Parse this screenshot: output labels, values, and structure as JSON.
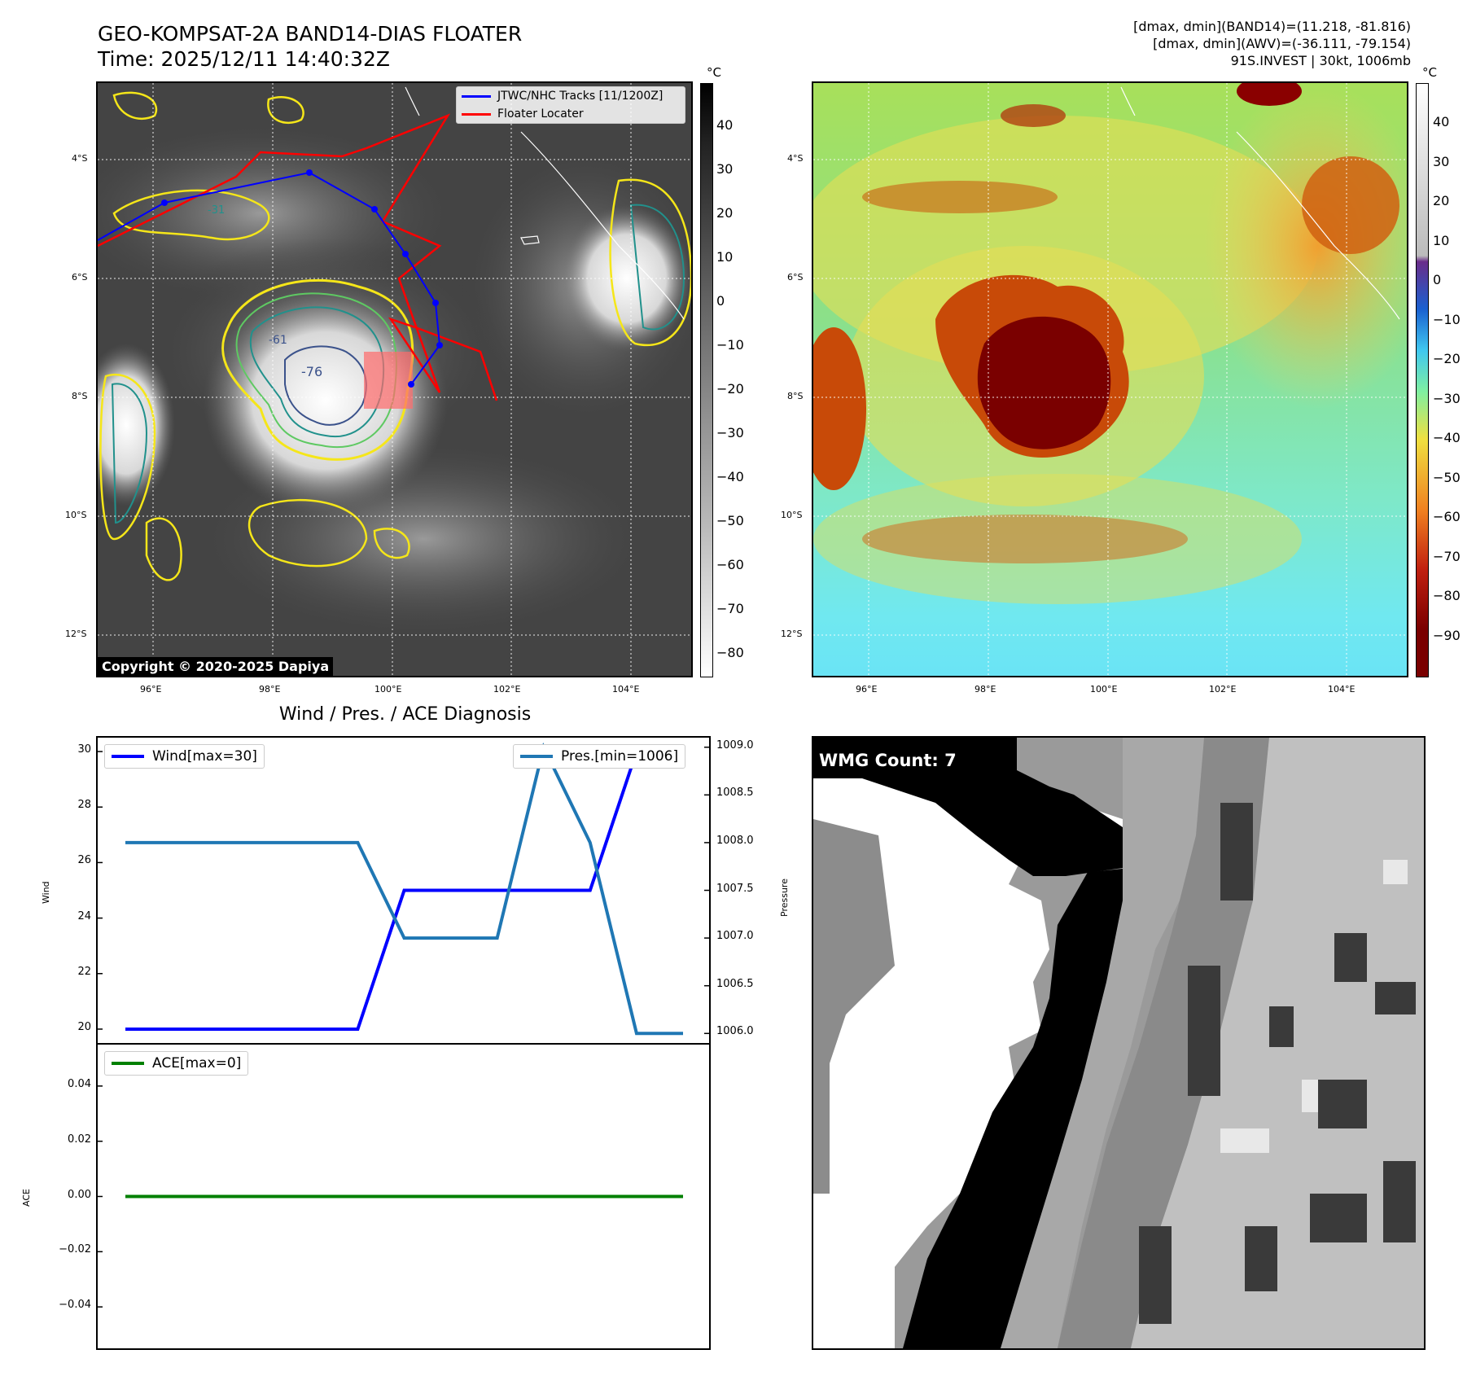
{
  "header": {
    "title_line1": "GEO-KOMPSAT-2A BAND14-DIAS FLOATER",
    "title_line2": "Time: 2025/12/11 14:40:32Z",
    "info_line1": "[dmax, dmin](BAND14)=(11.218, -81.816)",
    "info_line2": "[dmax, dmin](AWV)=(-36.111, -79.154)",
    "info_line3": "91S.INVEST | 30kt, 1006mb"
  },
  "maps": {
    "lat_labels": [
      "4°S",
      "6°S",
      "8°S",
      "10°S",
      "12°S"
    ],
    "lon_labels": [
      "96°E",
      "98°E",
      "100°E",
      "102°E",
      "104°E"
    ],
    "copyright": "Copyright © 2020-2025 Dapiya",
    "legend": {
      "track": "JTWC/NHC Tracks [11/1200Z]",
      "floater": "Floater Locater"
    },
    "contour_labels": [
      "-31",
      "-61",
      "-76"
    ],
    "cbar_unit": "°C",
    "cbar1_ticks": [
      "40",
      "30",
      "20",
      "10",
      "0",
      "−10",
      "−20",
      "−30",
      "−40",
      "−50",
      "−60",
      "−70",
      "−80"
    ],
    "cbar2_ticks": [
      "40",
      "30",
      "20",
      "10",
      "0",
      "−10",
      "−20",
      "−30",
      "−40",
      "−50",
      "−60",
      "−70",
      "−80",
      "−90"
    ],
    "colors": {
      "track": "#0000ff",
      "floater": "#ff0000",
      "contour_yellow": "#f5e619",
      "contour_green": "#5ec962",
      "contour_teal": "#21918c",
      "contour_navy": "#3b528b"
    }
  },
  "diagnosis": {
    "title": "Wind / Pres. / ACE Diagnosis",
    "wind_label": "Wind",
    "pressure_label": "Pressure",
    "ace_label": "ACE",
    "wind_legend": "Wind[max=30]",
    "pres_legend": "Pres.[min=1006]",
    "ace_legend": "ACE[max=0]",
    "wind_ticks": [
      "30",
      "28",
      "26",
      "24",
      "22",
      "20"
    ],
    "pres_ticks": [
      "1009.0",
      "1008.5",
      "1008.0",
      "1007.5",
      "1007.0",
      "1006.5",
      "1006.0"
    ],
    "ace_ticks": [
      "0.04",
      "0.02",
      "0.00",
      "−0.02",
      "−0.04"
    ],
    "wmg_label": "WMG Count: 7"
  },
  "chart_data": [
    {
      "type": "line",
      "title": "Wind / Pres. / ACE Diagnosis",
      "x": [
        0,
        1,
        2,
        3,
        4,
        5,
        6,
        7,
        8,
        9,
        10,
        11,
        12
      ],
      "series": [
        {
          "name": "Wind[max=30]",
          "axis": "left",
          "color": "#0000ff",
          "values": [
            20,
            20,
            20,
            20,
            20,
            20,
            25,
            25,
            25,
            25,
            25,
            30,
            30
          ]
        },
        {
          "name": "Pres.[min=1006]",
          "axis": "right",
          "color": "#1f77b4",
          "values": [
            1008,
            1008,
            1008,
            1008,
            1008,
            1008,
            1007,
            1007,
            1007,
            1009,
            1008,
            1006,
            1006
          ]
        }
      ],
      "ylabel": "Wind",
      "ylim": [
        19.5,
        30.5
      ],
      "y2label": "Pressure",
      "y2lim": [
        1005.9,
        1009.1
      ]
    },
    {
      "type": "line",
      "x": [
        0,
        1,
        2,
        3,
        4,
        5,
        6,
        7,
        8,
        9,
        10,
        11,
        12
      ],
      "series": [
        {
          "name": "ACE[max=0]",
          "color": "#008000",
          "values": [
            0,
            0,
            0,
            0,
            0,
            0,
            0,
            0,
            0,
            0,
            0,
            0,
            0
          ]
        }
      ],
      "ylabel": "ACE",
      "ylim": [
        -0.055,
        0.055
      ]
    }
  ]
}
